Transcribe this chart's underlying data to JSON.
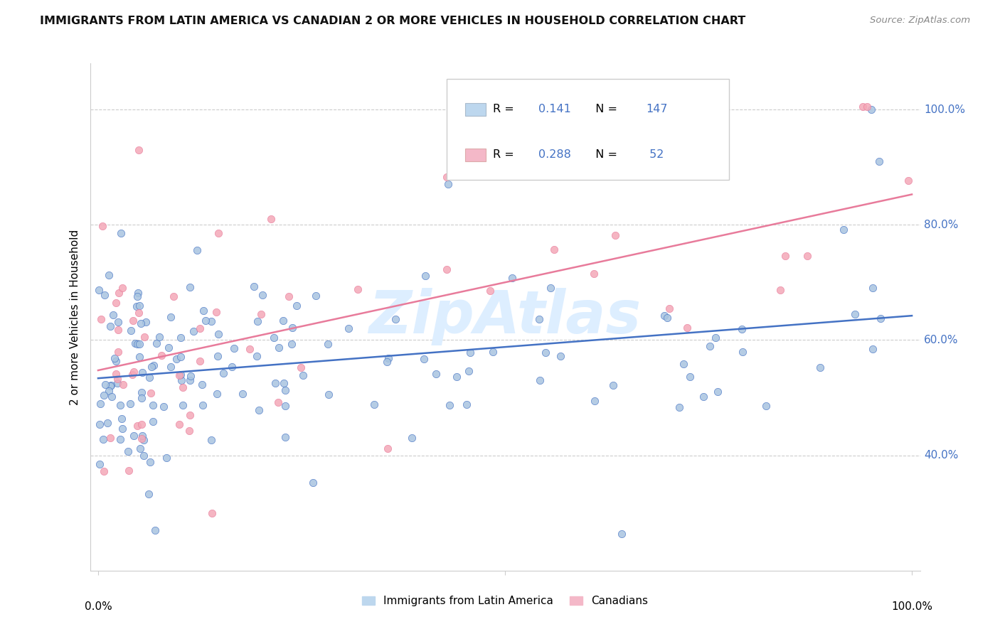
{
  "title": "IMMIGRANTS FROM LATIN AMERICA VS CANADIAN 2 OR MORE VEHICLES IN HOUSEHOLD CORRELATION CHART",
  "source": "Source: ZipAtlas.com",
  "ylabel": "2 or more Vehicles in Household",
  "legend_blue_r": "0.141",
  "legend_blue_n": "147",
  "legend_pink_r": "0.288",
  "legend_pink_n": "52",
  "legend_blue_label": "Immigrants from Latin America",
  "legend_pink_label": "Canadians",
  "blue_scatter_color": "#A8C4E0",
  "pink_scatter_color": "#F4A8B8",
  "blue_line_color": "#4472C4",
  "pink_line_color": "#E87B9B",
  "legend_blue_color": "#BDD7EE",
  "legend_pink_color": "#F4B8C8",
  "value_color": "#4472C4",
  "watermark_color": "#DDEEFF",
  "ytick_vals": [
    40,
    60,
    80,
    100
  ],
  "ylim_min": 20,
  "ylim_max": 108,
  "xlim_min": -1,
  "xlim_max": 101,
  "blue_intercept": 54.0,
  "blue_slope": 0.065,
  "pink_intercept": 58.0,
  "pink_slope": 0.22
}
